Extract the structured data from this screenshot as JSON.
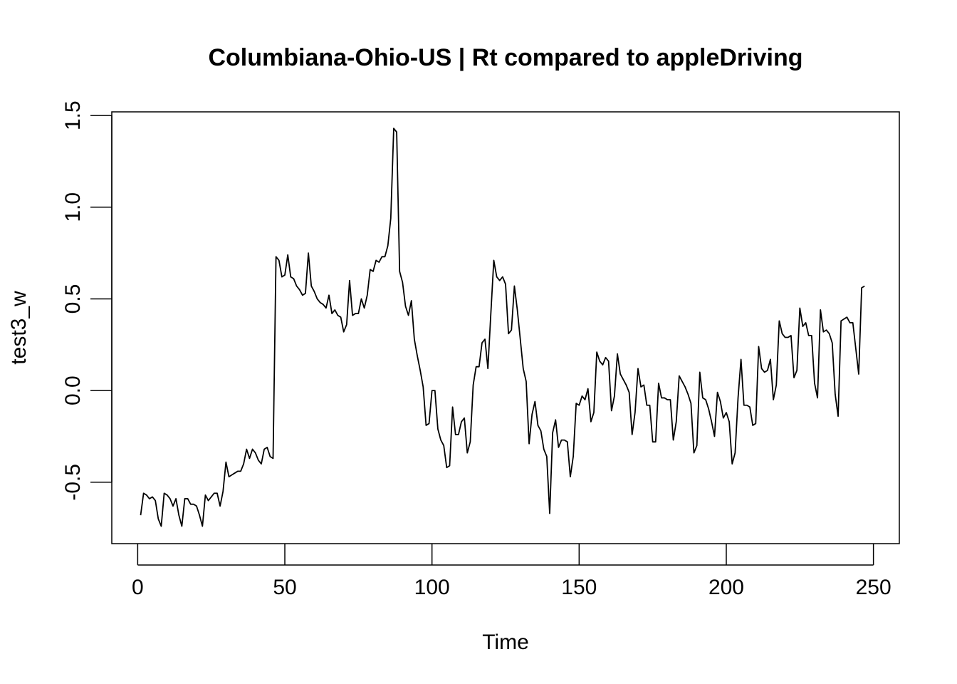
{
  "chart_data": {
    "type": "line",
    "title": "Columbiana-Ohio-US | Rt compared to appleDriving",
    "xlabel": "Time",
    "ylabel": "test3_w",
    "xlim": [
      -8.8,
      258.8
    ],
    "ylim": [
      -0.835,
      1.52
    ],
    "xticks": [
      0,
      50,
      100,
      150,
      200,
      250
    ],
    "yticks": [
      -0.5,
      0.0,
      0.5,
      1.0,
      1.5
    ],
    "xtick_labels": [
      "0",
      "50",
      "100",
      "150",
      "200",
      "250"
    ],
    "ytick_labels": [
      "-0.5",
      "0.0",
      "0.5",
      "1.0",
      "1.5"
    ],
    "grid": false,
    "legend": "none",
    "line_color": "#000000",
    "series": [
      {
        "x_start": 1,
        "values": [
          -0.68,
          -0.56,
          -0.57,
          -0.59,
          -0.58,
          -0.6,
          -0.7,
          -0.74,
          -0.56,
          -0.57,
          -0.59,
          -0.63,
          -0.59,
          -0.68,
          -0.74,
          -0.59,
          -0.59,
          -0.62,
          -0.62,
          -0.63,
          -0.68,
          -0.74,
          -0.57,
          -0.6,
          -0.58,
          -0.56,
          -0.56,
          -0.63,
          -0.55,
          -0.39,
          -0.47,
          -0.46,
          -0.45,
          -0.44,
          -0.44,
          -0.4,
          -0.32,
          -0.37,
          -0.32,
          -0.34,
          -0.38,
          -0.4,
          -0.32,
          -0.31,
          -0.36,
          -0.37,
          0.73,
          0.71,
          0.62,
          0.63,
          0.74,
          0.62,
          0.61,
          0.57,
          0.55,
          0.52,
          0.53,
          0.75,
          0.57,
          0.54,
          0.5,
          0.48,
          0.47,
          0.45,
          0.52,
          0.42,
          0.44,
          0.41,
          0.4,
          0.32,
          0.36,
          0.6,
          0.41,
          0.42,
          0.42,
          0.5,
          0.45,
          0.52,
          0.66,
          0.65,
          0.71,
          0.7,
          0.73,
          0.73,
          0.79,
          0.94,
          1.43,
          1.41,
          0.65,
          0.59,
          0.46,
          0.41,
          0.49,
          0.28,
          0.19,
          0.11,
          0.02,
          -0.19,
          -0.18,
          0.0,
          0.0,
          -0.21,
          -0.27,
          -0.3,
          -0.42,
          -0.41,
          -0.09,
          -0.24,
          -0.24,
          -0.17,
          -0.15,
          -0.34,
          -0.28,
          0.03,
          0.13,
          0.13,
          0.26,
          0.28,
          0.12,
          0.42,
          0.71,
          0.62,
          0.6,
          0.62,
          0.58,
          0.31,
          0.33,
          0.57,
          0.44,
          0.28,
          0.12,
          0.05,
          -0.29,
          -0.13,
          -0.06,
          -0.19,
          -0.22,
          -0.32,
          -0.36,
          -0.67,
          -0.23,
          -0.16,
          -0.31,
          -0.27,
          -0.27,
          -0.28,
          -0.47,
          -0.36,
          -0.07,
          -0.08,
          -0.03,
          -0.05,
          0.01,
          -0.17,
          -0.12,
          0.21,
          0.16,
          0.14,
          0.18,
          0.16,
          -0.11,
          -0.03,
          0.2,
          0.09,
          0.06,
          0.03,
          -0.01,
          -0.24,
          -0.12,
          0.12,
          0.02,
          0.03,
          -0.08,
          -0.08,
          -0.28,
          -0.28,
          0.04,
          -0.04,
          -0.04,
          -0.05,
          -0.05,
          -0.27,
          -0.17,
          0.08,
          0.05,
          0.02,
          -0.02,
          -0.07,
          -0.34,
          -0.3,
          0.1,
          -0.04,
          -0.05,
          -0.1,
          -0.17,
          -0.25,
          -0.01,
          -0.06,
          -0.15,
          -0.12,
          -0.17,
          -0.4,
          -0.34,
          -0.04,
          0.17,
          -0.08,
          -0.08,
          -0.09,
          -0.19,
          -0.18,
          0.24,
          0.12,
          0.1,
          0.11,
          0.17,
          -0.05,
          0.03,
          0.38,
          0.31,
          0.29,
          0.29,
          0.3,
          0.07,
          0.11,
          0.45,
          0.35,
          0.37,
          0.3,
          0.3,
          0.04,
          -0.04,
          0.44,
          0.32,
          0.33,
          0.31,
          0.26,
          -0.02,
          -0.14,
          0.38,
          0.39,
          0.4,
          0.37,
          0.37,
          0.23,
          0.09,
          0.56,
          0.57
        ]
      }
    ]
  }
}
